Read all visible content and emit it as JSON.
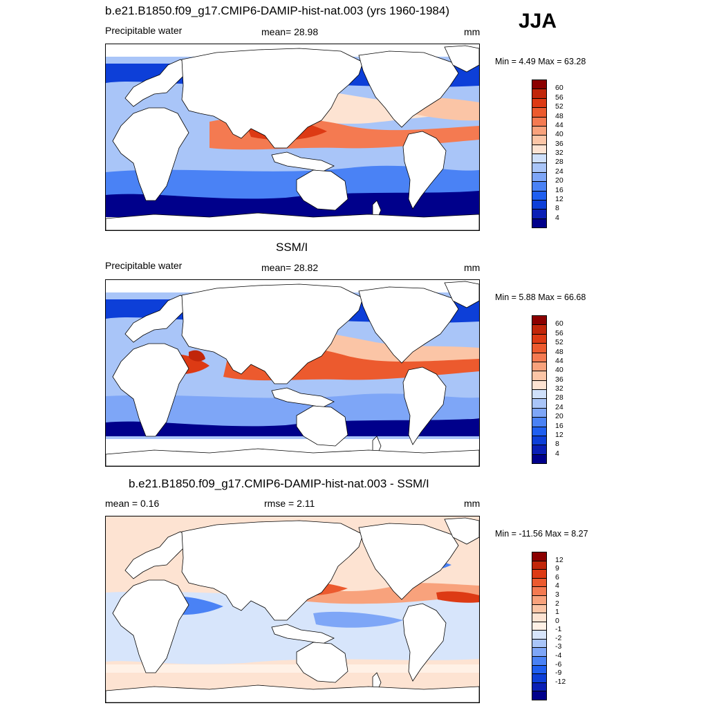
{
  "season": "JJA",
  "colors": {
    "seq": [
      "#00008b",
      "#0a1fb5",
      "#0d3fd8",
      "#1f5ff0",
      "#4a82f5",
      "#7ea6f7",
      "#a9c5f8",
      "#cfe0fa",
      "#fde3d2",
      "#fbc5a6",
      "#f8a27c",
      "#f47a51",
      "#ec5a2e",
      "#dd3a14",
      "#c1260a",
      "#8b0000"
    ],
    "div": [
      "#00008b",
      "#0a1fb5",
      "#0d3fd8",
      "#1f5ff0",
      "#4a82f5",
      "#7ea6f7",
      "#a9c5f8",
      "#d7e5fb",
      "#fff1e6",
      "#fde3d2",
      "#fbc5a6",
      "#f8a27c",
      "#f47a51",
      "#ec5a2e",
      "#dd3a14",
      "#c1260a",
      "#8b0000"
    ]
  },
  "panels": [
    {
      "title": "b.e21.B1850.f09_g17.CMIP6-DAMIP-hist-nat.003 (yrs 1960-1984)",
      "left_label": "Precipitable water",
      "center_label": "mean=  28.98",
      "units": "mm",
      "minmax": "Min =   4.49 Max =  63.28",
      "colorbar_labels": [
        "60",
        "56",
        "52",
        "48",
        "44",
        "40",
        "36",
        "32",
        "28",
        "24",
        "20",
        "16",
        "12",
        "8",
        "4"
      ]
    },
    {
      "title": "SSM/I",
      "left_label": "Precipitable water",
      "center_label": "mean=  28.82",
      "units": "mm",
      "minmax": "Min =   5.88 Max =  66.68",
      "colorbar_labels": [
        "60",
        "56",
        "52",
        "48",
        "44",
        "40",
        "36",
        "32",
        "28",
        "24",
        "20",
        "16",
        "12",
        "8",
        "4"
      ]
    },
    {
      "title": "b.e21.B1850.f09_g17.CMIP6-DAMIP-hist-nat.003 - SSM/I",
      "left_label": "mean =   0.16",
      "center_label": "rmse =   2.11",
      "units": "mm",
      "minmax": "Min = -11.56 Max =   8.27",
      "colorbar_labels": [
        "12",
        "9",
        "6",
        "4",
        "3",
        "2",
        "1",
        "0",
        "-1",
        "-2",
        "-3",
        "-4",
        "-6",
        "-9",
        "-12"
      ]
    }
  ],
  "chart_data": [
    {
      "type": "heatmap",
      "title": "b.e21.B1850.f09_g17.CMIP6-DAMIP-hist-nat.003 (yrs 1960-1984)",
      "variable": "Precipitable water",
      "units": "mm",
      "mean": 28.98,
      "min": 4.49,
      "max": 63.28,
      "levels": [
        4,
        8,
        12,
        16,
        20,
        24,
        28,
        32,
        36,
        40,
        44,
        48,
        52,
        56,
        60
      ]
    },
    {
      "type": "heatmap",
      "title": "SSM/I",
      "variable": "Precipitable water",
      "units": "mm",
      "mean": 28.82,
      "min": 5.88,
      "max": 66.68,
      "levels": [
        4,
        8,
        12,
        16,
        20,
        24,
        28,
        32,
        36,
        40,
        44,
        48,
        52,
        56,
        60
      ]
    },
    {
      "type": "heatmap",
      "title": "b.e21.B1850.f09_g17.CMIP6-DAMIP-hist-nat.003 - SSM/I",
      "units": "mm",
      "mean": 0.16,
      "rmse": 2.11,
      "min": -11.56,
      "max": 8.27,
      "levels": [
        -12,
        -9,
        -6,
        -4,
        -3,
        -2,
        -1,
        0,
        1,
        2,
        3,
        4,
        6,
        9,
        12
      ]
    }
  ]
}
